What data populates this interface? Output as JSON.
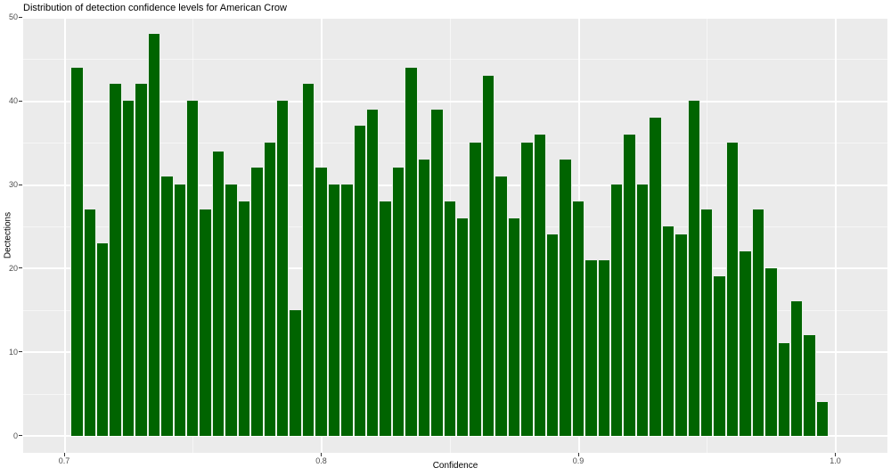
{
  "chart_data": {
    "type": "bar",
    "subtype": "histogram",
    "title": "Distribution of detection confidence levels for American Crow",
    "xlabel": "Confidence",
    "ylabel": "Dectections",
    "bin_width": 0.005,
    "bin_centers": [
      0.705,
      0.71,
      0.715,
      0.72,
      0.725,
      0.73,
      0.735,
      0.74,
      0.745,
      0.75,
      0.755,
      0.76,
      0.765,
      0.77,
      0.775,
      0.78,
      0.785,
      0.79,
      0.795,
      0.8,
      0.805,
      0.81,
      0.815,
      0.82,
      0.825,
      0.83,
      0.835,
      0.84,
      0.845,
      0.85,
      0.855,
      0.86,
      0.865,
      0.87,
      0.875,
      0.88,
      0.885,
      0.89,
      0.895,
      0.9,
      0.905,
      0.91,
      0.915,
      0.92,
      0.925,
      0.93,
      0.935,
      0.94,
      0.945,
      0.95,
      0.955,
      0.96,
      0.965,
      0.97,
      0.975,
      0.98,
      0.985,
      0.99,
      0.995
    ],
    "values": [
      44,
      27,
      23,
      42,
      40,
      42,
      48,
      31,
      30,
      40,
      27,
      34,
      30,
      28,
      32,
      35,
      40,
      15,
      42,
      32,
      30,
      30,
      37,
      39,
      28,
      32,
      44,
      33,
      39,
      28,
      26,
      35,
      43,
      31,
      26,
      35,
      36,
      24,
      33,
      28,
      21,
      21,
      30,
      36,
      30,
      38,
      25,
      24,
      40,
      27,
      19,
      35,
      22,
      27,
      20,
      11,
      16,
      12,
      4
    ],
    "x_ticks": [
      0.7,
      0.8,
      0.9,
      1.0
    ],
    "x_tick_labels": [
      "0.7",
      "0.8",
      "0.9",
      "1.0"
    ],
    "x_minor_ticks": [
      0.75,
      0.85,
      0.95
    ],
    "y_ticks": [
      0,
      10,
      20,
      30,
      40,
      50
    ],
    "y_tick_labels": [
      "0",
      "10",
      "20",
      "30",
      "40",
      "50"
    ],
    "y_minor_ticks": [
      5,
      15,
      25,
      35,
      45
    ],
    "xlim": [
      0.684,
      1.02
    ],
    "ylim": [
      -2.1,
      49.9
    ],
    "grid": true,
    "legend": false,
    "colors": {
      "bar_fill": "#006400",
      "bar_border": "#e9f2e9",
      "panel_bg": "#EBEBEB",
      "grid_major": "#FFFFFF",
      "grid_minor": "#FFFFFF",
      "tick_label": "#4D4D4D",
      "tick_mark": "#333333",
      "text": "#000000",
      "background": "#FFFFFF"
    }
  }
}
